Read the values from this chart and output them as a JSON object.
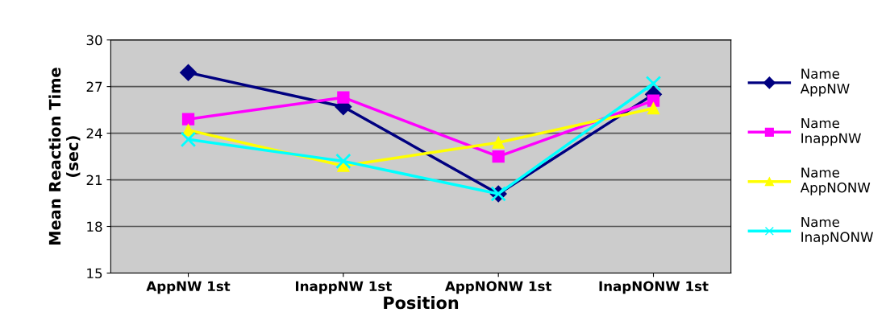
{
  "chart_data": {
    "type": "line",
    "xlabel": "Position",
    "ylabel": "Mean Reaction Time\n(sec)",
    "categories": [
      "AppNW 1st",
      "InappNW 1st",
      "AppNONW 1st",
      "InapNONW 1st"
    ],
    "series": [
      {
        "name": "Name\nAppNW",
        "color": "#000080",
        "marker": "diamond",
        "values": [
          27.9,
          25.7,
          20.1,
          26.5
        ]
      },
      {
        "name": "Name\nInappNW",
        "color": "#ff00ff",
        "marker": "square",
        "values": [
          24.9,
          26.3,
          22.5,
          26.1
        ]
      },
      {
        "name": "Name\nAppNONW",
        "color": "#ffff00",
        "marker": "triangle",
        "values": [
          24.2,
          21.9,
          23.4,
          25.6
        ]
      },
      {
        "name": "Name\nInapNONW",
        "color": "#00ffff",
        "marker": "cross",
        "values": [
          23.6,
          22.2,
          20.1,
          27.2
        ]
      }
    ],
    "ylim": [
      15,
      30
    ],
    "yticks": [
      15,
      18,
      21,
      24,
      27,
      30
    ],
    "grid": "y",
    "legend": "right",
    "line_style": "solid"
  }
}
